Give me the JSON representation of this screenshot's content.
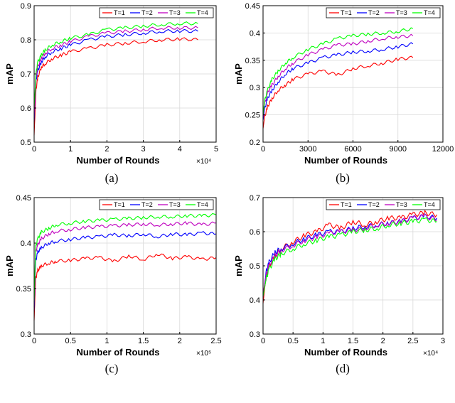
{
  "chart_data": [
    {
      "type": "line",
      "caption": "(a)",
      "xlabel": "Number of Rounds",
      "ylabel": "mAP",
      "x_multiplier": "×10⁴",
      "xlim": [
        0,
        5
      ],
      "ylim": [
        0.5,
        0.9
      ],
      "xticks": [
        "0",
        "1",
        "2",
        "3",
        "4",
        "5"
      ],
      "yticks": [
        "0.5",
        "0.6",
        "0.7",
        "0.8",
        "0.9"
      ],
      "grid": true,
      "legend": "top-right",
      "x": [
        0,
        0.05,
        0.1,
        0.2,
        0.3,
        0.5,
        0.75,
        1.0,
        1.5,
        2.0,
        2.5,
        3.0,
        3.5,
        4.0,
        4.5
      ],
      "series": [
        {
          "name": "T=1",
          "color": "#ff0000",
          "values": [
            0.52,
            0.65,
            0.69,
            0.72,
            0.73,
            0.745,
            0.755,
            0.765,
            0.775,
            0.785,
            0.79,
            0.795,
            0.8,
            0.802,
            0.8
          ]
        },
        {
          "name": "T=2",
          "color": "#0000ff",
          "values": [
            0.56,
            0.68,
            0.71,
            0.735,
            0.75,
            0.765,
            0.775,
            0.785,
            0.8,
            0.81,
            0.815,
            0.82,
            0.825,
            0.826,
            0.825
          ]
        },
        {
          "name": "T=3",
          "color": "#bf00bf",
          "values": [
            0.57,
            0.69,
            0.72,
            0.745,
            0.76,
            0.775,
            0.785,
            0.795,
            0.81,
            0.82,
            0.825,
            0.83,
            0.835,
            0.835,
            0.835
          ]
        },
        {
          "name": "T=4",
          "color": "#00ff00",
          "values": [
            0.6,
            0.7,
            0.735,
            0.755,
            0.77,
            0.785,
            0.795,
            0.805,
            0.815,
            0.83,
            0.835,
            0.84,
            0.845,
            0.848,
            0.848
          ]
        }
      ]
    },
    {
      "type": "line",
      "caption": "(b)",
      "xlabel": "Number of Rounds",
      "ylabel": "mAP",
      "x_multiplier": "",
      "xlim": [
        0,
        12000
      ],
      "ylim": [
        0.2,
        0.45
      ],
      "xticks": [
        "0",
        "3000",
        "6000",
        "9000",
        "12000"
      ],
      "yticks": [
        "0.2",
        "0.25",
        "0.3",
        "0.35",
        "0.4",
        "0.45"
      ],
      "grid": true,
      "legend": "top-right",
      "x": [
        0,
        100,
        300,
        600,
        1000,
        1500,
        2000,
        3000,
        4000,
        5000,
        6000,
        7000,
        8000,
        9000,
        10000
      ],
      "series": [
        {
          "name": "T=1",
          "color": "#ff0000",
          "values": [
            0.225,
            0.245,
            0.265,
            0.28,
            0.295,
            0.305,
            0.315,
            0.325,
            0.33,
            0.323,
            0.335,
            0.34,
            0.345,
            0.352,
            0.355
          ]
        },
        {
          "name": "T=2",
          "color": "#0000ff",
          "values": [
            0.24,
            0.26,
            0.28,
            0.295,
            0.31,
            0.325,
            0.335,
            0.345,
            0.355,
            0.36,
            0.365,
            0.367,
            0.37,
            0.375,
            0.38
          ]
        },
        {
          "name": "T=3",
          "color": "#bf00bf",
          "values": [
            0.245,
            0.27,
            0.29,
            0.305,
            0.32,
            0.335,
            0.345,
            0.36,
            0.37,
            0.378,
            0.38,
            0.385,
            0.39,
            0.393,
            0.395
          ]
        },
        {
          "name": "T=4",
          "color": "#00ff00",
          "values": [
            0.25,
            0.275,
            0.295,
            0.315,
            0.33,
            0.345,
            0.355,
            0.37,
            0.38,
            0.39,
            0.395,
            0.398,
            0.4,
            0.403,
            0.408
          ]
        }
      ]
    },
    {
      "type": "line",
      "caption": "(c)",
      "xlabel": "Number of Rounds",
      "ylabel": "mAP",
      "x_multiplier": "×10⁵",
      "xlim": [
        0,
        2.5
      ],
      "ylim": [
        0.3,
        0.45
      ],
      "xticks": [
        "0",
        "0.5",
        "1",
        "1.5",
        "2",
        "2.5"
      ],
      "yticks": [
        "0.3",
        "0.35",
        "0.4",
        "0.45"
      ],
      "grid": true,
      "legend": "top-right",
      "x": [
        0,
        0.02,
        0.05,
        0.1,
        0.2,
        0.3,
        0.5,
        0.7,
        0.9,
        1.1,
        1.3,
        1.5,
        1.7,
        1.9,
        2.1,
        2.3,
        2.5
      ],
      "series": [
        {
          "name": "T=1",
          "color": "#ff0000",
          "values": [
            0.315,
            0.36,
            0.37,
            0.375,
            0.378,
            0.38,
            0.381,
            0.383,
            0.384,
            0.38,
            0.386,
            0.382,
            0.388,
            0.383,
            0.385,
            0.382,
            0.384
          ]
        },
        {
          "name": "T=2",
          "color": "#0000ff",
          "values": [
            0.325,
            0.38,
            0.39,
            0.395,
            0.4,
            0.402,
            0.404,
            0.406,
            0.407,
            0.409,
            0.408,
            0.41,
            0.407,
            0.41,
            0.409,
            0.411,
            0.41
          ]
        },
        {
          "name": "T=3",
          "color": "#bf00bf",
          "values": [
            0.33,
            0.39,
            0.398,
            0.405,
            0.41,
            0.413,
            0.415,
            0.417,
            0.418,
            0.419,
            0.42,
            0.421,
            0.42,
            0.421,
            0.422,
            0.42,
            0.422
          ]
        },
        {
          "name": "T=4",
          "color": "#00ff00",
          "values": [
            0.335,
            0.395,
            0.405,
            0.412,
            0.416,
            0.42,
            0.422,
            0.424,
            0.425,
            0.426,
            0.427,
            0.428,
            0.429,
            0.429,
            0.43,
            0.43,
            0.431
          ]
        }
      ]
    },
    {
      "type": "line",
      "caption": "(d)",
      "xlabel": "Number of Rounds",
      "ylabel": "mAP",
      "x_multiplier": "×10⁴",
      "xlim": [
        0,
        3
      ],
      "ylim": [
        0.3,
        0.7
      ],
      "xticks": [
        "0",
        "0.5",
        "1",
        "1.5",
        "2",
        "2.5",
        "3"
      ],
      "yticks": [
        "0.3",
        "0.4",
        "0.5",
        "0.6",
        "0.7"
      ],
      "grid": true,
      "legend": "top-right",
      "x": [
        0,
        0.05,
        0.1,
        0.2,
        0.3,
        0.5,
        0.7,
        0.9,
        1.1,
        1.3,
        1.5,
        1.7,
        1.9,
        2.1,
        2.3,
        2.5,
        2.7,
        2.9
      ],
      "series": [
        {
          "name": "T=1",
          "color": "#ff0000",
          "values": [
            0.39,
            0.47,
            0.5,
            0.53,
            0.55,
            0.57,
            0.59,
            0.6,
            0.62,
            0.61,
            0.63,
            0.62,
            0.63,
            0.64,
            0.64,
            0.65,
            0.655,
            0.65
          ]
        },
        {
          "name": "T=2",
          "color": "#0000ff",
          "values": [
            0.41,
            0.48,
            0.51,
            0.54,
            0.55,
            0.565,
            0.58,
            0.59,
            0.6,
            0.6,
            0.61,
            0.615,
            0.62,
            0.625,
            0.63,
            0.64,
            0.645,
            0.64
          ]
        },
        {
          "name": "T=3",
          "color": "#bf00bf",
          "values": [
            0.42,
            0.47,
            0.5,
            0.53,
            0.545,
            0.56,
            0.575,
            0.585,
            0.595,
            0.6,
            0.605,
            0.61,
            0.62,
            0.625,
            0.63,
            0.64,
            0.645,
            0.635
          ]
        },
        {
          "name": "T=4",
          "color": "#00ff00",
          "values": [
            0.41,
            0.46,
            0.49,
            0.52,
            0.535,
            0.55,
            0.565,
            0.575,
            0.585,
            0.59,
            0.6,
            0.605,
            0.61,
            0.62,
            0.625,
            0.63,
            0.635,
            0.63
          ]
        }
      ]
    }
  ]
}
